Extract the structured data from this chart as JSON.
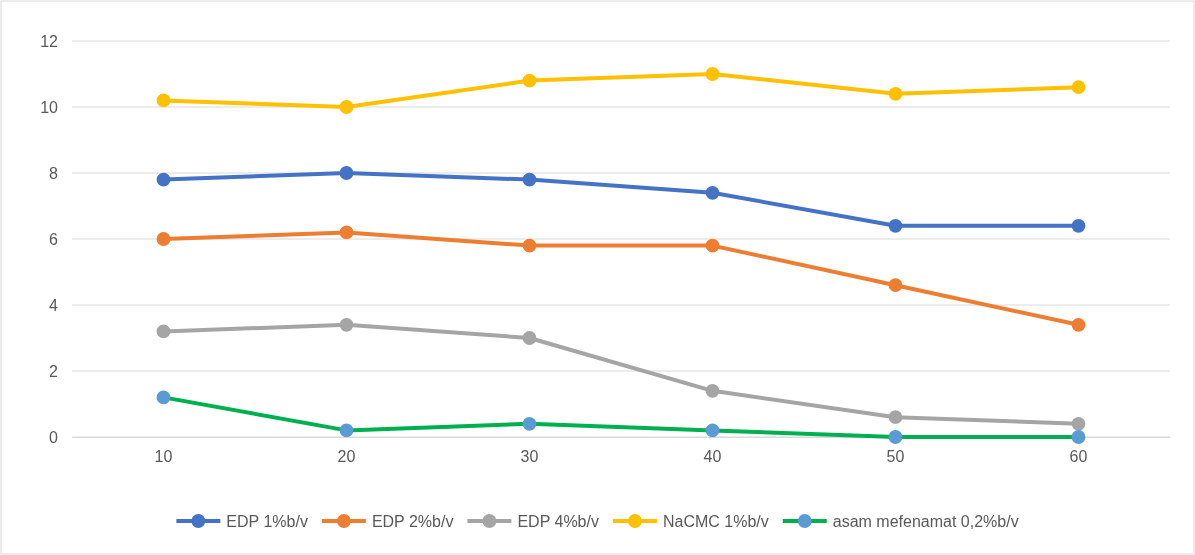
{
  "chart_data": {
    "type": "line",
    "categories": [
      "10",
      "20",
      "30",
      "40",
      "50",
      "60"
    ],
    "ylim": [
      0,
      12
    ],
    "yticks": [
      0,
      2,
      4,
      6,
      8,
      10,
      12
    ],
    "grid": "y",
    "legend": "bottom",
    "marker": "circle",
    "line_style": "solid",
    "series": [
      {
        "name": "EDP 1%b/v",
        "color": "#4472c4",
        "values": [
          7.8,
          8.0,
          7.8,
          7.4,
          6.4,
          6.4
        ]
      },
      {
        "name": "EDP 2%b/v",
        "color": "#ed7d31",
        "values": [
          6.0,
          6.2,
          5.8,
          5.8,
          4.6,
          3.4
        ]
      },
      {
        "name": "EDP 4%b/v",
        "color": "#a5a5a5",
        "values": [
          3.2,
          3.4,
          3.0,
          1.4,
          0.6,
          0.4
        ]
      },
      {
        "name": "NaCMC 1%b/v",
        "color": "#ffc000",
        "values": [
          10.2,
          10.0,
          10.8,
          11.0,
          10.4,
          10.6
        ]
      },
      {
        "name": "asam mefenamat 0,2%b/v",
        "color": "#00b050",
        "colors": [
          "#5b9bd5",
          "#5b9bd5",
          "#5b9bd5",
          "#5b9bd5",
          "#5b9bd5",
          "#5b9bd5"
        ],
        "values": [
          1.2,
          0.2,
          0.4,
          0.2,
          0,
          0
        ]
      }
    ]
  }
}
